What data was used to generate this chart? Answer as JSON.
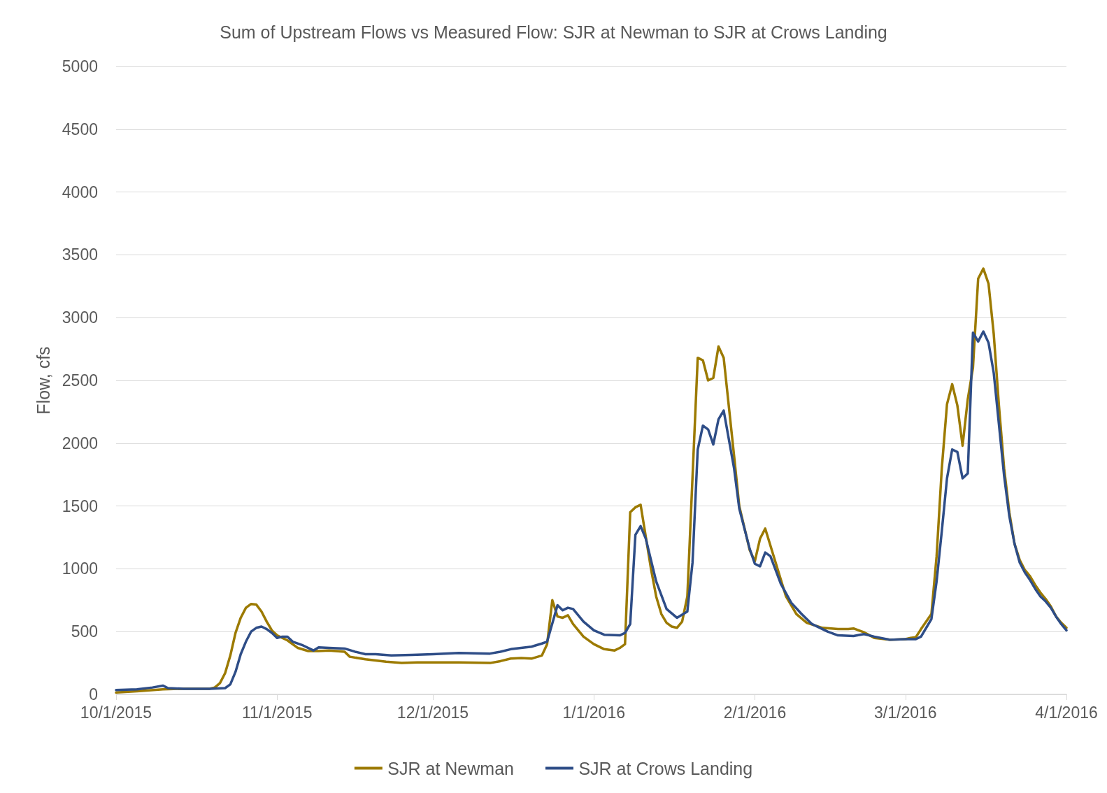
{
  "chart_data": {
    "type": "line",
    "title": "Sum of Upstream Flows vs Measured Flow: SJR at Newman to SJR at Crows Landing",
    "ylabel": "Flow, cfs",
    "xlim": [
      "2015-10-01",
      "2016-04-01"
    ],
    "xticks": [
      {
        "value": "2015-10-01",
        "label": "10/1/2015"
      },
      {
        "value": "2015-11-01",
        "label": "11/1/2015"
      },
      {
        "value": "2015-12-01",
        "label": "12/1/2015"
      },
      {
        "value": "2016-01-01",
        "label": "1/1/2016"
      },
      {
        "value": "2016-02-01",
        "label": "2/1/2016"
      },
      {
        "value": "2016-03-01",
        "label": "3/1/2016"
      },
      {
        "value": "2016-04-01",
        "label": "4/1/2016"
      }
    ],
    "ylim": [
      0,
      5000
    ],
    "yticks": [
      0,
      500,
      1000,
      1500,
      2000,
      2500,
      3000,
      3500,
      4000,
      4500,
      5000
    ],
    "grid": "y",
    "legend": "bottom",
    "marker": "none",
    "line_style": "solid",
    "series": [
      {
        "name": "SJR at Newman",
        "color": "#9c7a00",
        "x": [
          "2015-10-01",
          "2015-10-05",
          "2015-10-10",
          "2015-10-14",
          "2015-10-19",
          "2015-10-20",
          "2015-10-21",
          "2015-10-22",
          "2015-10-23",
          "2015-10-24",
          "2015-10-25",
          "2015-10-26",
          "2015-10-27",
          "2015-10-28",
          "2015-10-29",
          "2015-10-30",
          "2015-10-31",
          "2015-11-01",
          "2015-11-03",
          "2015-11-05",
          "2015-11-07",
          "2015-11-09",
          "2015-11-11",
          "2015-11-14",
          "2015-11-15",
          "2015-11-18",
          "2015-11-22",
          "2015-11-25",
          "2015-11-28",
          "2015-12-01",
          "2015-12-06",
          "2015-12-12",
          "2015-12-14",
          "2015-12-16",
          "2015-12-18",
          "2015-12-20",
          "2015-12-22",
          "2015-12-23",
          "2015-12-24",
          "2015-12-25",
          "2015-12-26",
          "2015-12-27",
          "2015-12-28",
          "2015-12-30",
          "2016-01-01",
          "2016-01-03",
          "2016-01-05",
          "2016-01-06",
          "2016-01-07",
          "2016-01-08",
          "2016-01-09",
          "2016-01-10",
          "2016-01-12",
          "2016-01-13",
          "2016-01-14",
          "2016-01-15",
          "2016-01-16",
          "2016-01-17",
          "2016-01-18",
          "2016-01-19",
          "2016-01-21",
          "2016-01-22",
          "2016-01-23",
          "2016-01-24",
          "2016-01-25",
          "2016-01-26",
          "2016-01-28",
          "2016-01-29",
          "2016-01-31",
          "2016-02-01",
          "2016-02-02",
          "2016-02-03",
          "2016-02-05",
          "2016-02-07",
          "2016-02-09",
          "2016-02-11",
          "2016-02-14",
          "2016-02-17",
          "2016-02-19",
          "2016-02-20",
          "2016-02-22",
          "2016-02-24",
          "2016-02-27",
          "2016-03-01",
          "2016-03-02",
          "2016-03-03",
          "2016-03-04",
          "2016-03-06",
          "2016-03-07",
          "2016-03-08",
          "2016-03-09",
          "2016-03-10",
          "2016-03-11",
          "2016-03-12",
          "2016-03-13",
          "2016-03-14",
          "2016-03-15",
          "2016-03-16",
          "2016-03-17",
          "2016-03-18",
          "2016-03-19",
          "2016-03-20",
          "2016-03-21",
          "2016-03-22",
          "2016-03-23",
          "2016-03-24",
          "2016-03-25",
          "2016-03-26",
          "2016-03-27",
          "2016-03-28",
          "2016-03-29",
          "2016-03-30",
          "2016-03-31",
          "2016-04-01"
        ],
        "values": [
          15,
          25,
          40,
          45,
          45,
          55,
          90,
          170,
          310,
          490,
          610,
          690,
          720,
          715,
          660,
          580,
          510,
          470,
          430,
          370,
          345,
          345,
          350,
          340,
          300,
          280,
          260,
          250,
          255,
          255,
          255,
          250,
          265,
          285,
          290,
          285,
          310,
          400,
          750,
          620,
          610,
          630,
          560,
          460,
          400,
          360,
          350,
          370,
          400,
          1450,
          1490,
          1510,
          1000,
          780,
          640,
          570,
          540,
          530,
          580,
          780,
          2680,
          2660,
          2500,
          2520,
          2770,
          2680,
          1900,
          1500,
          1150,
          1060,
          1240,
          1320,
          1050,
          780,
          640,
          570,
          530,
          520,
          520,
          525,
          495,
          450,
          435,
          440,
          450,
          455,
          520,
          640,
          1100,
          1800,
          2310,
          2470,
          2300,
          1980,
          2350,
          2600,
          3310,
          3390,
          3270,
          2870,
          2300,
          1800,
          1450,
          1200,
          1070,
          990,
          940,
          870,
          810,
          760,
          700,
          620,
          570,
          530
        ]
      },
      {
        "name": "SJR at Crows Landing",
        "color": "#2e4d87",
        "x": [
          "2015-10-01",
          "2015-10-05",
          "2015-10-08",
          "2015-10-10",
          "2015-10-11",
          "2015-10-14",
          "2015-10-19",
          "2015-10-22",
          "2015-10-23",
          "2015-10-24",
          "2015-10-25",
          "2015-10-26",
          "2015-10-27",
          "2015-10-28",
          "2015-10-29",
          "2015-10-30",
          "2015-10-31",
          "2015-11-01",
          "2015-11-02",
          "2015-11-03",
          "2015-11-04",
          "2015-11-06",
          "2015-11-08",
          "2015-11-09",
          "2015-11-11",
          "2015-11-14",
          "2015-11-16",
          "2015-11-18",
          "2015-11-20",
          "2015-11-23",
          "2015-11-27",
          "2015-12-01",
          "2015-12-06",
          "2015-12-12",
          "2015-12-14",
          "2015-12-16",
          "2015-12-18",
          "2015-12-20",
          "2015-12-22",
          "2015-12-23",
          "2015-12-25",
          "2015-12-26",
          "2015-12-27",
          "2015-12-28",
          "2015-12-30",
          "2016-01-01",
          "2016-01-03",
          "2016-01-06",
          "2016-01-07",
          "2016-01-08",
          "2016-01-09",
          "2016-01-10",
          "2016-01-11",
          "2016-01-13",
          "2016-01-15",
          "2016-01-17",
          "2016-01-19",
          "2016-01-20",
          "2016-01-21",
          "2016-01-22",
          "2016-01-23",
          "2016-01-24",
          "2016-01-25",
          "2016-01-26",
          "2016-01-28",
          "2016-01-29",
          "2016-01-31",
          "2016-02-01",
          "2016-02-02",
          "2016-02-03",
          "2016-02-04",
          "2016-02-06",
          "2016-02-08",
          "2016-02-10",
          "2016-02-12",
          "2016-02-15",
          "2016-02-17",
          "2016-02-20",
          "2016-02-22",
          "2016-02-24",
          "2016-02-27",
          "2016-03-01",
          "2016-03-03",
          "2016-03-04",
          "2016-03-06",
          "2016-03-07",
          "2016-03-08",
          "2016-03-09",
          "2016-03-10",
          "2016-03-11",
          "2016-03-12",
          "2016-03-13",
          "2016-03-14",
          "2016-03-15",
          "2016-03-16",
          "2016-03-17",
          "2016-03-18",
          "2016-03-19",
          "2016-03-20",
          "2016-03-21",
          "2016-03-22",
          "2016-03-23",
          "2016-03-24",
          "2016-03-25",
          "2016-03-26",
          "2016-03-27",
          "2016-03-28",
          "2016-03-29",
          "2016-03-30",
          "2016-03-31",
          "2016-04-01"
        ],
        "values": [
          35,
          40,
          55,
          70,
          50,
          45,
          45,
          50,
          80,
          180,
          320,
          420,
          500,
          530,
          540,
          520,
          490,
          450,
          460,
          460,
          420,
          390,
          350,
          375,
          370,
          365,
          340,
          320,
          320,
          310,
          315,
          320,
          330,
          325,
          340,
          360,
          370,
          380,
          405,
          420,
          710,
          670,
          690,
          680,
          580,
          510,
          475,
          470,
          490,
          560,
          1270,
          1340,
          1240,
          900,
          680,
          610,
          660,
          1050,
          1950,
          2140,
          2110,
          1990,
          2190,
          2260,
          1800,
          1480,
          1160,
          1040,
          1020,
          1130,
          1100,
          880,
          730,
          640,
          560,
          500,
          470,
          465,
          480,
          460,
          435,
          440,
          440,
          460,
          600,
          900,
          1300,
          1720,
          1950,
          1930,
          1720,
          1760,
          2880,
          2810,
          2890,
          2800,
          2560,
          2150,
          1740,
          1420,
          1200,
          1050,
          970,
          910,
          840,
          780,
          740,
          690,
          620,
          560,
          510
        ]
      }
    ]
  }
}
